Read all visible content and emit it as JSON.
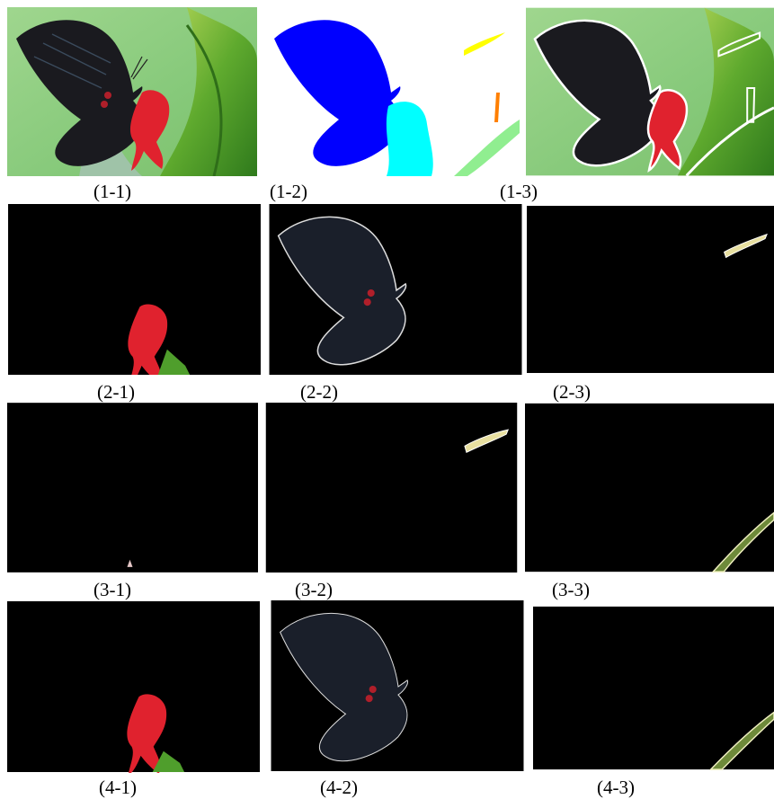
{
  "figure": {
    "captions": {
      "p11": "(1-1)",
      "p12": "(1-2)",
      "p13": "(1-3)",
      "p21": "(2-1)",
      "p22": "(2-2)",
      "p23": "(2-3)",
      "p31": "(3-1)",
      "p32": "(3-2)",
      "p33": "(3-3)",
      "p41": "(4-1)",
      "p42": "(4-2)",
      "p43": "(4-3)"
    },
    "colors": {
      "background_green": "#86c97a",
      "butterfly": "#1a1a1f",
      "flower_red": "#e0222e",
      "leaf_green": "#4f9e2c",
      "segment_blue": "#0000ff",
      "segment_cyan": "#00ffff",
      "segment_yellow": "#ffff00",
      "segment_orange": "#ff7f00",
      "segment_lightgreen": "#90ee90",
      "mask_black": "#000000",
      "contour_white": "#ffffff"
    }
  }
}
